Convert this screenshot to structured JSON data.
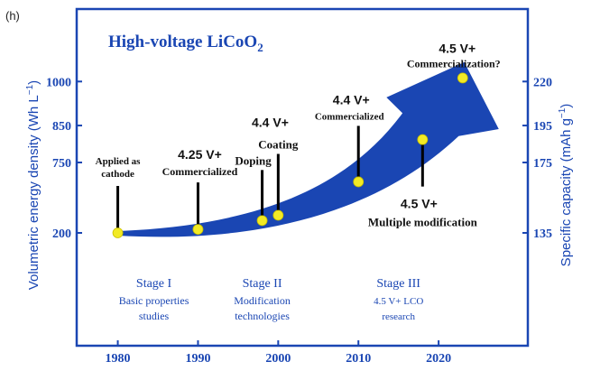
{
  "panel_label": "(h)",
  "chart_data": {
    "type": "line",
    "title": "High-voltage LiCoO",
    "title_subscript": "2",
    "ylabel_left": "Volumetric energy density (Wh L",
    "ylabel_left_sup": "−1",
    "ylabel_left_close": ")",
    "ylabel_right": "Specific capacity (mAh g",
    "ylabel_right_sup": "−1",
    "ylabel_right_close": ")",
    "x_ticks": [
      "1980",
      "1990",
      "2000",
      "2010",
      "2020"
    ],
    "x_tick_values": [
      1980,
      1990,
      2000,
      2010,
      2020
    ],
    "xlim": [
      1976,
      2030
    ],
    "y_left_ticks": [
      "200",
      "750",
      "850",
      "1000"
    ],
    "y_right_ticks": [
      "135",
      "175",
      "195",
      "220"
    ],
    "tick_fractions": [
      0.0,
      0.4,
      0.61,
      0.86
    ],
    "trend_color": "#1a46b3",
    "frame_color": "#1a46b3",
    "point_color": "#f2ea25",
    "points": [
      {
        "year": 1980,
        "level": 0.0,
        "label": [
          "Applied as",
          "cathode"
        ],
        "label_style": "small"
      },
      {
        "year": 1990,
        "level": 0.02,
        "label": [
          "4.25 V+",
          "Commercialized"
        ],
        "label_style": "voltage"
      },
      {
        "year": 1998,
        "level": 0.07,
        "label": [
          "Doping"
        ],
        "label_style": "medium"
      },
      {
        "year": 2000,
        "level": 0.1,
        "label": [
          "Coating"
        ],
        "label_style": "medium"
      },
      {
        "year": 2010,
        "level": 0.29,
        "label": [
          "4.4 V+",
          "Commercialized"
        ],
        "label_style": "voltage-small"
      },
      {
        "year": 2018,
        "level": 0.53,
        "label": [
          "4.5 V+",
          "Multiple modification"
        ],
        "label_style": "voltage-below"
      },
      {
        "year": 2023,
        "level": 0.88,
        "label": [
          "4.5 V+",
          "Commercialization?"
        ],
        "label_style": "voltage-top"
      }
    ],
    "extra_labels": {
      "doping_coating_voltage": "4.4 V+"
    },
    "stages": [
      {
        "name": "Stage I",
        "desc": [
          "Basic properties",
          "studies"
        ]
      },
      {
        "name": "Stage II",
        "desc": [
          "Modification",
          "technologies"
        ]
      },
      {
        "name": "Stage III",
        "desc": [
          "4.5 V+ LCO",
          "research"
        ]
      }
    ]
  }
}
